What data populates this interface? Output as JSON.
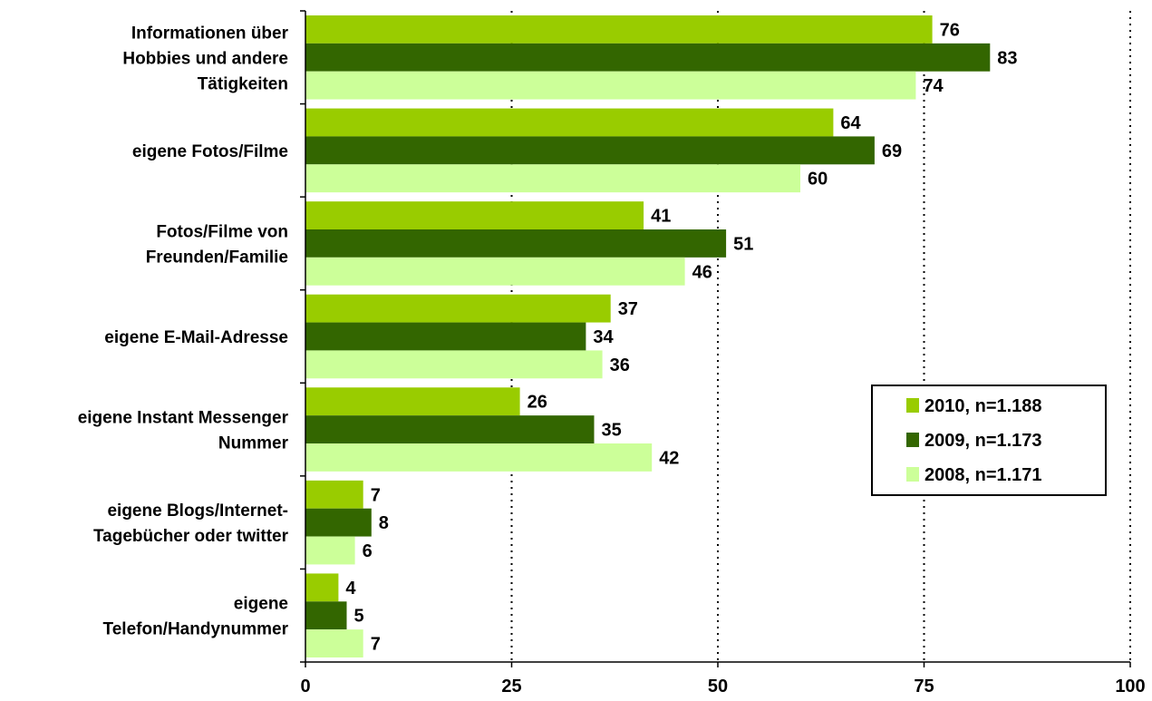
{
  "chart_data": {
    "type": "bar",
    "orientation": "horizontal",
    "categories": [
      "Informationen über Hobbies und andere Tätigkeiten",
      "eigene Fotos/Filme",
      "Fotos/Filme von Freunden/Familie",
      "eigene E-Mail-Adresse",
      "eigene Instant Messenger Nummer",
      "eigene Blogs/Internet-Tagebücher oder twitter",
      "eigene Telefon/Handynummer"
    ],
    "category_lines": [
      [
        "Informationen über",
        "Hobbies und andere",
        "Tätigkeiten"
      ],
      [
        "eigene Fotos/Filme"
      ],
      [
        "Fotos/Filme von",
        "Freunden/Familie"
      ],
      [
        "eigene E-Mail-Adresse"
      ],
      [
        "eigene Instant Messenger",
        "Nummer"
      ],
      [
        "eigene Blogs/Internet-",
        "Tagebücher oder twitter"
      ],
      [
        "eigene",
        "Telefon/Handynummer"
      ]
    ],
    "series": [
      {
        "name": "2010, n=1.188",
        "color": "#99cc00",
        "values": [
          76,
          64,
          41,
          37,
          26,
          7,
          4
        ]
      },
      {
        "name": "2009, n=1.173",
        "color": "#336600",
        "values": [
          83,
          69,
          51,
          34,
          35,
          8,
          5
        ]
      },
      {
        "name": "2008, n=1.171",
        "color": "#ccff99",
        "values": [
          74,
          60,
          46,
          36,
          42,
          6,
          7
        ]
      }
    ],
    "xlim": [
      0,
      100
    ],
    "xticks": [
      0,
      25,
      50,
      75,
      100
    ],
    "grid": "vertical-dotted",
    "legend_position": "right-middle"
  }
}
